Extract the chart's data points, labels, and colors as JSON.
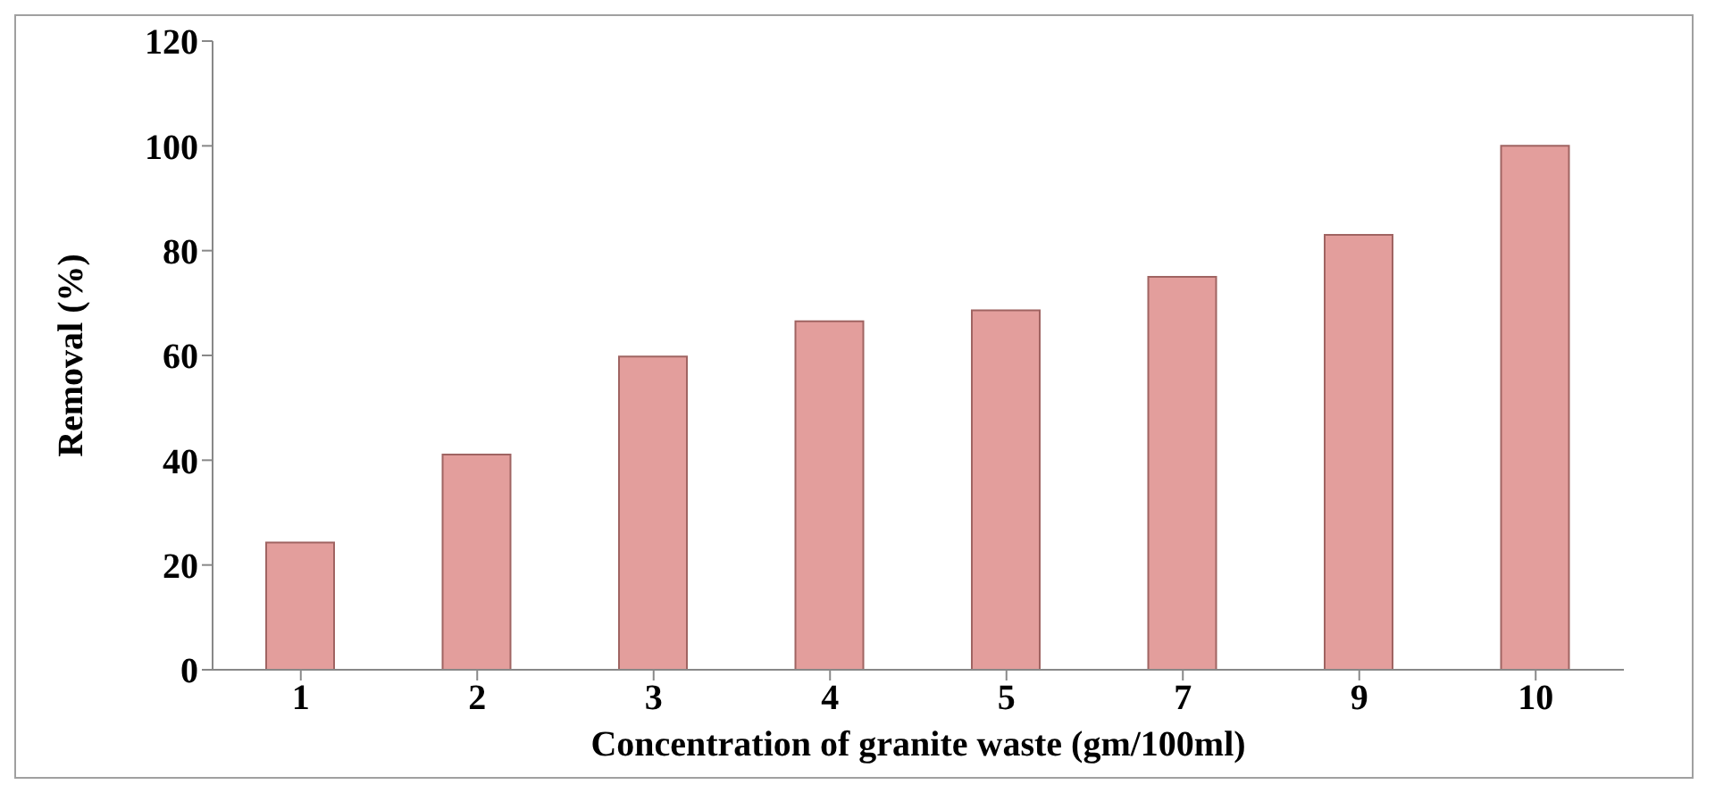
{
  "chart_data": {
    "type": "bar",
    "xlabel": "Concentration of  granite waste (gm/100ml)",
    "ylabel": "Removal (%)",
    "categories": [
      "1",
      "2",
      "3",
      "4",
      "5",
      "7",
      "9",
      "10"
    ],
    "values": [
      24.3,
      41.1,
      59.8,
      66.5,
      68.6,
      75,
      83,
      100
    ],
    "color": "#e39e9c",
    "ylim": [
      0,
      120
    ],
    "yticks": [
      0,
      20,
      40,
      60,
      80,
      100,
      120
    ],
    "grid": false
  }
}
